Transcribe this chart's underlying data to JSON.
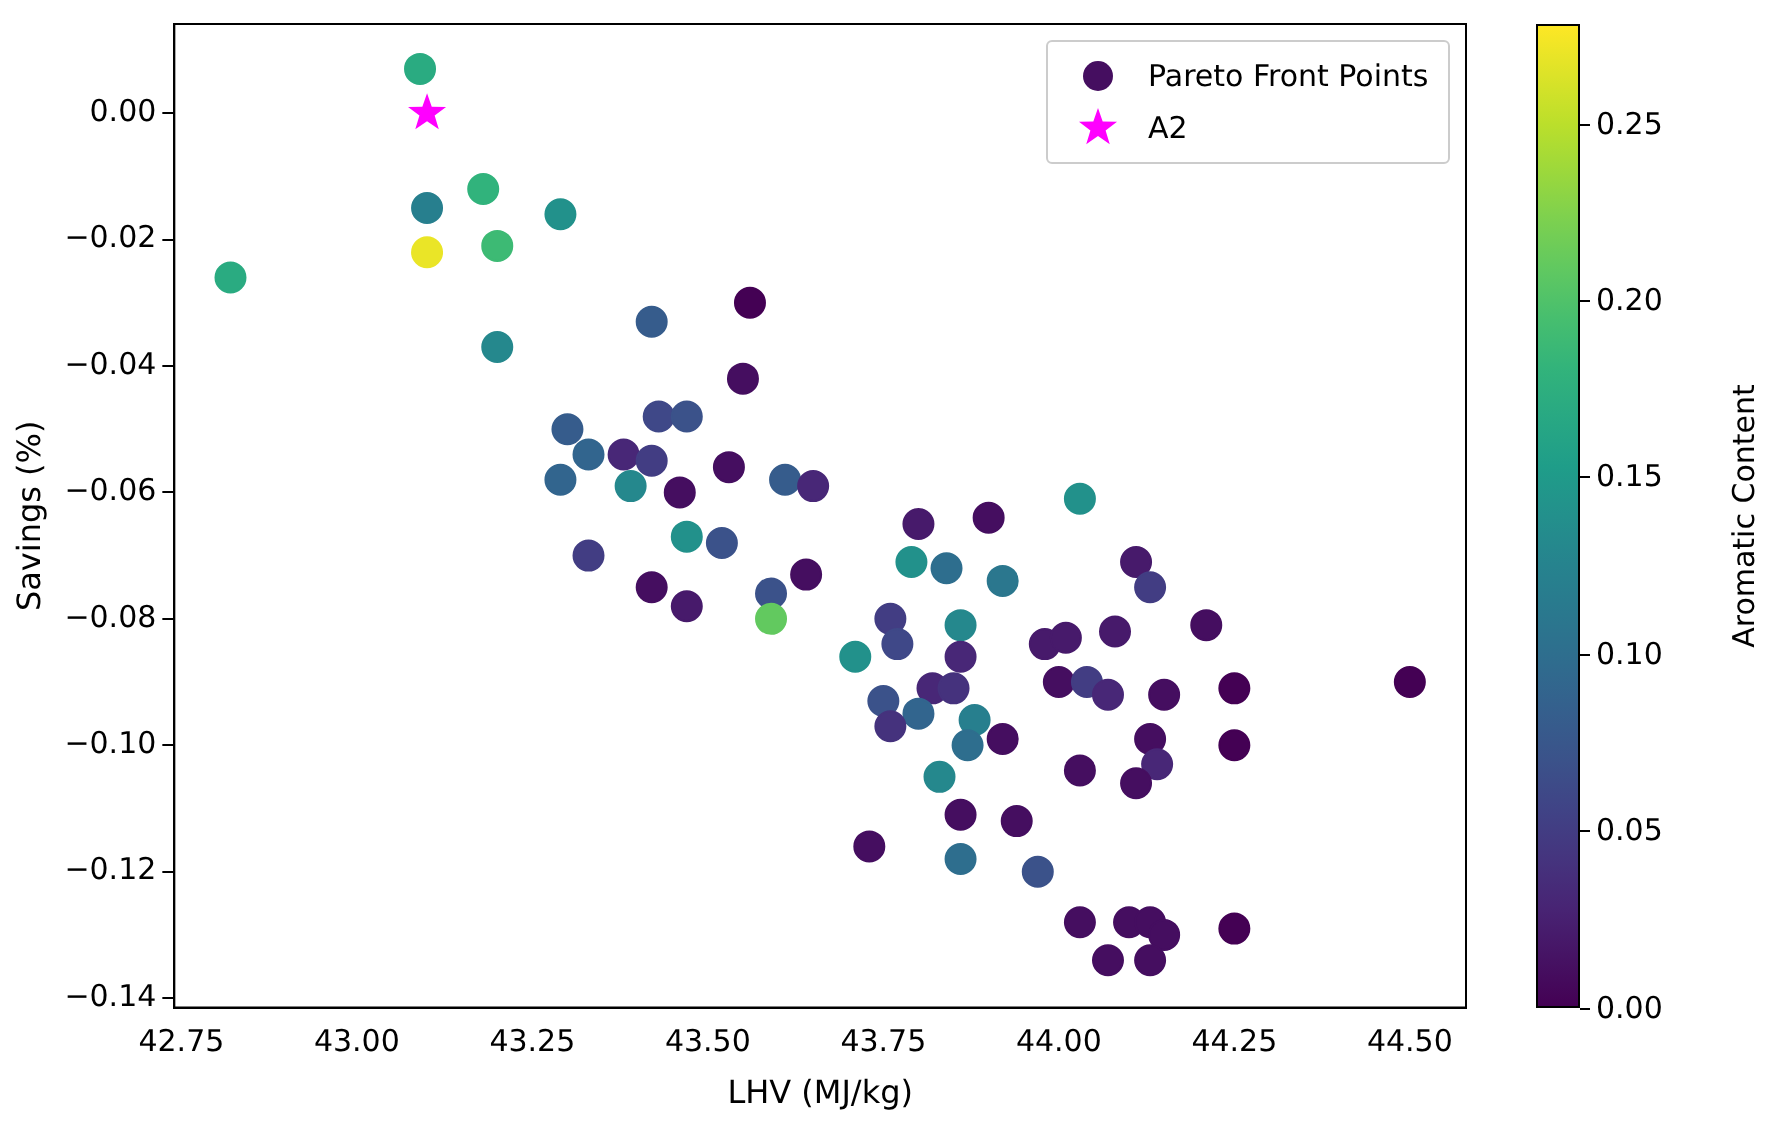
{
  "chart_data": {
    "type": "scatter",
    "xlabel": "LHV (MJ/kg)",
    "ylabel": "Savings (%)",
    "clabel": "Aromatic Content",
    "xlim": [
      42.74,
      44.58
    ],
    "ylim": [
      -0.1415,
      0.0141
    ],
    "xticks": [
      42.75,
      {
        "value": 43,
        "label": "43.00"
      },
      43.25,
      {
        "value": 43.5,
        "label": "43.50"
      },
      43.75,
      {
        "value": 44,
        "label": "44.00"
      },
      44.25,
      {
        "value": 44.5,
        "label": "44.50"
      }
    ],
    "yticks": [
      {
        "value": 0,
        "label": "0.00"
      },
      {
        "value": -0.02,
        "label": "−0.02"
      },
      {
        "value": -0.04,
        "label": "−0.04"
      },
      {
        "value": -0.06,
        "label": "−0.06"
      },
      {
        "value": -0.08,
        "label": "−0.08"
      },
      {
        "value": -0.1,
        "label": "−0.10"
      },
      {
        "value": -0.12,
        "label": "−0.12"
      },
      {
        "value": -0.14,
        "label": "−0.14"
      }
    ],
    "clim": [
      0,
      0.278
    ],
    "cticks": [
      {
        "value": 0,
        "label": "0.00"
      },
      {
        "value": 0.05,
        "label": "0.05"
      },
      {
        "value": 0.1,
        "label": "0.10"
      },
      {
        "value": 0.15,
        "label": "0.15"
      },
      {
        "value": 0.2,
        "label": "0.20"
      },
      {
        "value": 0.25,
        "label": "0.25"
      }
    ],
    "grid": false,
    "marker": "circle",
    "legend": "top right",
    "series": [
      {
        "name": "Pareto Front Points",
        "type": "scatter",
        "colors": [
          "#2aab81",
          "#277f8e",
          "#31b37c",
          "#eae527",
          "#3dba74",
          "#22918b",
          "#2aab81",
          "#25888d",
          "#440154",
          "#365c8c",
          "#450e60",
          "#365c8c",
          "#3f4888",
          "#3b528a",
          "#32658e",
          "#482777",
          "#423d83",
          "#32658e",
          "#25888d",
          "#450e60",
          "#450e60",
          "#365c8c",
          "#482777",
          "#22918b",
          "#423d83",
          "#22918b",
          "#3b528a",
          "#471a6b",
          "#450e60",
          "#450e60",
          "#471a6b",
          "#3b528a",
          "#450e60",
          "#62c95f",
          "#22918b",
          "#2e6e8e",
          "#2b778e",
          "#471a6b",
          "#423d83",
          "#423d83",
          "#3f4888",
          "#25888d",
          "#22918b",
          "#482777",
          "#471a6b",
          "#471a6b",
          "#471a6b",
          "#450e60",
          "#3b528a",
          "#482777",
          "#45327d",
          "#450e60",
          "#423d83",
          "#482777",
          "#450e60",
          "#440154",
          "#440154",
          "#32658e",
          "#45327d",
          "#277f8e",
          "#2e6e8e",
          "#450e60",
          "#450e60",
          "#482777",
          "#450e60",
          "#450e60",
          "#440154",
          "#25888d",
          "#450e60",
          "#450e60",
          "#450e60",
          "#2e6e8e",
          "#3b528a",
          "#450e60",
          "#450e60",
          "#450e60",
          "#450e60",
          "#440154",
          "#450e60",
          "#450e60"
        ],
        "x": [
          43.09,
          43.1,
          43.18,
          43.1,
          43.2,
          43.29,
          42.82,
          43.2,
          43.56,
          43.42,
          43.55,
          43.3,
          43.43,
          43.47,
          43.33,
          43.38,
          43.42,
          43.29,
          43.39,
          43.46,
          43.53,
          43.61,
          43.65,
          44.03,
          43.33,
          43.47,
          43.52,
          43.8,
          43.9,
          43.42,
          43.47,
          43.59,
          43.64,
          43.59,
          43.79,
          43.84,
          43.92,
          44.11,
          44.13,
          43.76,
          43.77,
          43.86,
          43.71,
          43.86,
          43.98,
          44.01,
          44.08,
          44.21,
          43.75,
          43.82,
          43.85,
          44.0,
          44.04,
          44.07,
          44.15,
          44.25,
          44.5,
          43.8,
          43.76,
          43.88,
          43.87,
          43.92,
          44.13,
          44.14,
          44.11,
          44.03,
          44.25,
          43.83,
          43.86,
          43.94,
          43.73,
          43.86,
          43.97,
          44.03,
          44.1,
          44.13,
          44.15,
          44.25,
          44.07,
          44.13
        ],
        "values": [
          0.007,
          -0.015,
          -0.012,
          -0.022,
          -0.021,
          -0.016,
          -0.026,
          -0.037,
          -0.03,
          -0.033,
          -0.042,
          -0.05,
          -0.048,
          -0.048,
          -0.054,
          -0.054,
          -0.055,
          -0.058,
          -0.059,
          -0.06,
          -0.056,
          -0.058,
          -0.059,
          -0.061,
          -0.07,
          -0.067,
          -0.068,
          -0.065,
          -0.064,
          -0.075,
          -0.078,
          -0.076,
          -0.073,
          -0.08,
          -0.071,
          -0.072,
          -0.074,
          -0.071,
          -0.075,
          -0.08,
          -0.084,
          -0.081,
          -0.086,
          -0.086,
          -0.084,
          -0.083,
          -0.082,
          -0.081,
          -0.093,
          -0.091,
          -0.091,
          -0.09,
          -0.09,
          -0.092,
          -0.092,
          -0.091,
          -0.09,
          -0.095,
          -0.097,
          -0.096,
          -0.1,
          -0.099,
          -0.099,
          -0.103,
          -0.106,
          -0.104,
          -0.1,
          -0.105,
          -0.111,
          -0.112,
          -0.116,
          -0.118,
          -0.12,
          -0.128,
          -0.128,
          -0.128,
          -0.13,
          -0.129,
          -0.134,
          -0.134
        ],
        "cvalues": [
          0.17,
          0.12,
          0.18,
          0.27,
          0.19,
          0.14,
          0.17,
          0.13,
          0.0,
          0.08,
          0.01,
          0.08,
          0.06,
          0.07,
          0.09,
          0.03,
          0.05,
          0.09,
          0.13,
          0.01,
          0.01,
          0.08,
          0.03,
          0.14,
          0.05,
          0.14,
          0.07,
          0.02,
          0.01,
          0.01,
          0.02,
          0.07,
          0.01,
          0.21,
          0.14,
          0.1,
          0.11,
          0.02,
          0.05,
          0.05,
          0.06,
          0.13,
          0.14,
          0.03,
          0.02,
          0.02,
          0.02,
          0.01,
          0.07,
          0.03,
          0.04,
          0.01,
          0.05,
          0.03,
          0.01,
          0.0,
          0.0,
          0.09,
          0.04,
          0.12,
          0.1,
          0.01,
          0.01,
          0.03,
          0.01,
          0.01,
          0.0,
          0.13,
          0.01,
          0.01,
          0.01,
          0.1,
          0.07,
          0.01,
          0.01,
          0.01,
          0.01,
          0.0,
          0.01,
          0.01
        ]
      },
      {
        "name": "A2",
        "type": "scatter",
        "marker": "star",
        "color": "#ff00ff",
        "x": [
          43.1
        ],
        "values": [
          0.0
        ]
      }
    ]
  }
}
